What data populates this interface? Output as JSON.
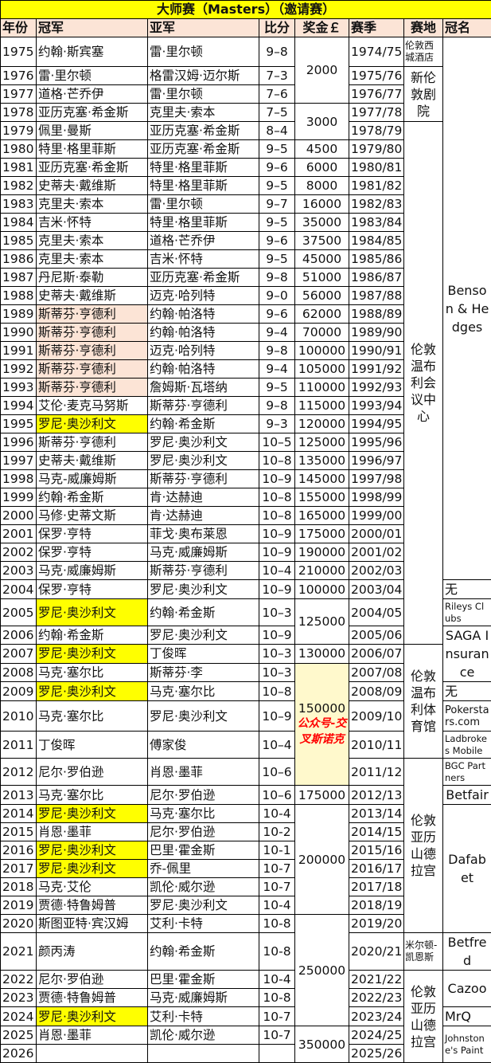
{
  "title": "大师赛（Masters）（邀请赛）",
  "headers": {
    "year": "年份",
    "winner": "冠军",
    "runner_up": "亚军",
    "score": "比分",
    "prize": "奖金￡",
    "season": "赛季",
    "venue": "赛地",
    "sponsor": "冠名"
  },
  "colors": {
    "title_bg": "#ffff00",
    "header_bg": "#fce4d6",
    "osullivan_highlight": "#ffff00",
    "hendry_highlight": "#fce4d6",
    "prize_highlight": "#fff9cc",
    "note_text": "#ff0000"
  },
  "rows": [
    {
      "year": "1975",
      "winner": "约翰·斯宾塞",
      "runner_up": "雷·里尔顿",
      "score": "9–8",
      "season": "1974/75",
      "hl": ""
    },
    {
      "year": "1976",
      "winner": "雷·里尔顿",
      "runner_up": "格雷汉姆·迈尔斯",
      "score": "7–3",
      "season": "1975/76",
      "hl": ""
    },
    {
      "year": "1977",
      "winner": "道格·芒乔伊",
      "runner_up": "雷·里尔顿",
      "score": "7–6",
      "season": "1976/77",
      "hl": ""
    },
    {
      "year": "1978",
      "winner": "亚历克塞·希金斯",
      "runner_up": "克里夫·索本",
      "score": "7–5",
      "season": "1977/78",
      "hl": ""
    },
    {
      "year": "1979",
      "winner": "佩里·曼斯",
      "runner_up": "亚历克塞·希金斯",
      "score": "8–4",
      "season": "1978/79",
      "hl": ""
    },
    {
      "year": "1980",
      "winner": "特里·格里菲斯",
      "runner_up": "亚历克塞·希金斯",
      "score": "9–5",
      "season": "1979/80",
      "hl": ""
    },
    {
      "year": "1981",
      "winner": "亚历克塞·希金斯",
      "runner_up": "特里·格里菲斯",
      "score": "9–6",
      "season": "1980/81",
      "hl": ""
    },
    {
      "year": "1982",
      "winner": "史蒂夫·戴维斯",
      "runner_up": "特里·格里菲斯",
      "score": "9–5",
      "season": "1981/82",
      "hl": ""
    },
    {
      "year": "1983",
      "winner": "克里夫·索本",
      "runner_up": "雷·里尔顿",
      "score": "9–7",
      "season": "1982/83",
      "hl": ""
    },
    {
      "year": "1984",
      "winner": "吉米·怀特",
      "runner_up": "特里·格里菲斯",
      "score": "9–5",
      "season": "1983/84",
      "hl": ""
    },
    {
      "year": "1985",
      "winner": "克里夫·索本",
      "runner_up": "道格·芒乔伊",
      "score": "9–6",
      "season": "1984/85",
      "hl": ""
    },
    {
      "year": "1986",
      "winner": "克里夫·索本",
      "runner_up": "吉米·怀特",
      "score": "9–5",
      "season": "1985/86",
      "hl": ""
    },
    {
      "year": "1987",
      "winner": "丹尼斯·泰勒",
      "runner_up": "亚历克塞·希金斯",
      "score": "9–8",
      "season": "1986/87",
      "hl": ""
    },
    {
      "year": "1988",
      "winner": "史蒂夫·戴维斯",
      "runner_up": "迈克·哈列特",
      "score": "9–0",
      "season": "1987/88",
      "hl": ""
    },
    {
      "year": "1989",
      "winner": "斯蒂芬·亨德利",
      "runner_up": "约翰·帕洛特",
      "score": "9–6",
      "season": "1988/89",
      "hl": "hendry"
    },
    {
      "year": "1990",
      "winner": "斯蒂芬·亨德利",
      "runner_up": "约翰·帕洛特",
      "score": "9–4",
      "season": "1989/90",
      "hl": "hendry"
    },
    {
      "year": "1991",
      "winner": "斯蒂芬·亨德利",
      "runner_up": "迈克·哈列特",
      "score": "9–8",
      "season": "1990/91",
      "hl": "hendry"
    },
    {
      "year": "1992",
      "winner": "斯蒂芬·亨德利",
      "runner_up": "约翰·帕洛特",
      "score": "9–4",
      "season": "1991/92",
      "hl": "hendry"
    },
    {
      "year": "1993",
      "winner": "斯蒂芬·亨德利",
      "runner_up": "詹姆斯·瓦塔纳",
      "score": "9–5",
      "season": "1992/93",
      "hl": "hendry"
    },
    {
      "year": "1994",
      "winner": "艾伦·麦克马努斯",
      "runner_up": "斯蒂芬·亨德利",
      "score": "9–8",
      "season": "1993/94",
      "hl": ""
    },
    {
      "year": "1995",
      "winner": "罗尼·奥沙利文",
      "runner_up": "约翰·希金斯",
      "score": "9–3",
      "season": "1994/95",
      "hl": "osullivan"
    },
    {
      "year": "1996",
      "winner": "斯蒂芬·亨德利",
      "runner_up": "罗尼·奥沙利文",
      "score": "10–5",
      "season": "1995/96",
      "hl": ""
    },
    {
      "year": "1997",
      "winner": "史蒂夫·戴维斯",
      "runner_up": "罗尼·奥沙利文",
      "score": "10–8",
      "season": "1996/97",
      "hl": ""
    },
    {
      "year": "1998",
      "winner": "马克-威廉姆斯",
      "runner_up": "斯蒂芬·亨德利",
      "score": "10–9",
      "season": "1997/98",
      "hl": ""
    },
    {
      "year": "1999",
      "winner": "约翰·希金斯",
      "runner_up": "肯·达赫迪",
      "score": "10–8",
      "season": "1998/99",
      "hl": ""
    },
    {
      "year": "2000",
      "winner": "马修·史蒂文斯",
      "runner_up": "肯·达赫迪",
      "score": "10–8",
      "season": "1999/00",
      "hl": ""
    },
    {
      "year": "2001",
      "winner": "保罗·亨特",
      "runner_up": "菲戈·奥布莱恩",
      "score": "10–9",
      "season": "2000/01",
      "hl": ""
    },
    {
      "year": "2002",
      "winner": "保罗·亨特",
      "runner_up": "马克·威廉姆斯",
      "score": "10–9",
      "season": "2001/02",
      "hl": ""
    },
    {
      "year": "2003",
      "winner": "马克·威廉姆斯",
      "runner_up": "斯蒂芬·亨德利",
      "score": "10–4",
      "season": "2002/03",
      "hl": ""
    },
    {
      "year": "2004",
      "winner": "保罗·亨特",
      "runner_up": "罗尼·奥沙利文",
      "score": "10–9",
      "season": "2003/04",
      "hl": ""
    },
    {
      "year": "2005",
      "winner": "罗尼·奥沙利文",
      "runner_up": "约翰·希金斯",
      "score": "10–3",
      "season": "2004/05",
      "hl": "osullivan"
    },
    {
      "year": "2006",
      "winner": "约翰·希金斯",
      "runner_up": "罗尼·奥沙利文",
      "score": "10–9",
      "season": "2005/06",
      "hl": ""
    },
    {
      "year": "2007",
      "winner": "罗尼·奥沙利文",
      "runner_up": "丁俊晖",
      "score": "10–3",
      "season": "2006/07",
      "hl": "osullivan"
    },
    {
      "year": "2008",
      "winner": "马克·塞尔比",
      "runner_up": "斯蒂芬·李",
      "score": "10–3",
      "season": "2007/08",
      "hl": ""
    },
    {
      "year": "2009",
      "winner": "罗尼·奥沙利文",
      "runner_up": "马克·塞尔比",
      "score": "10–8",
      "season": "2008/09",
      "hl": "osullivan"
    },
    {
      "year": "2010",
      "winner": "马克·塞尔比",
      "runner_up": "罗尼·奥沙利文",
      "score": "10–9",
      "season": "2009/10",
      "hl": ""
    },
    {
      "year": "2011",
      "winner": "丁俊晖",
      "runner_up": "傅家俊",
      "score": "10–4",
      "season": "2010/11",
      "hl": ""
    },
    {
      "year": "2012",
      "winner": "尼尔·罗伯逊",
      "runner_up": "肖恩·墨菲",
      "score": "10–6",
      "season": "2011/12",
      "hl": ""
    },
    {
      "year": "2013",
      "winner": "马克·塞尔比",
      "runner_up": "尼尔·罗伯逊",
      "score": "10–6",
      "season": "2012/13",
      "hl": ""
    },
    {
      "year": "2014",
      "winner": "罗尼·奥沙利文",
      "runner_up": "马克·塞尔比",
      "score": "10-4",
      "season": "2013/14",
      "hl": "osullivan"
    },
    {
      "year": "2015",
      "winner": "肖恩·墨菲",
      "runner_up": "尼尔·罗伯逊",
      "score": "10-2",
      "season": "2014/15",
      "hl": ""
    },
    {
      "year": "2016",
      "winner": "罗尼·奥沙利文",
      "runner_up": "巴里·霍金斯",
      "score": "10-1",
      "season": "2015/16",
      "hl": "osullivan"
    },
    {
      "year": "2017",
      "winner": "罗尼·奥沙利文",
      "runner_up": "乔-佩里",
      "score": "10-7",
      "season": "2016/17",
      "hl": "osullivan"
    },
    {
      "year": "2018",
      "winner": "马克·艾伦",
      "runner_up": "凯伦·威尔逊",
      "score": "10-7",
      "season": "2017/18",
      "hl": ""
    },
    {
      "year": "2019",
      "winner": "贾德·特鲁姆普",
      "runner_up": "罗尼·奥沙利文",
      "score": "10-4",
      "season": "2018/19",
      "hl": ""
    },
    {
      "year": "2020",
      "winner": "斯图亚特·宾汉姆",
      "runner_up": "艾利·卡特",
      "score": "10-8",
      "season": "2019/20",
      "hl": ""
    },
    {
      "year": "2021",
      "winner": "颜丙涛",
      "runner_up": "约翰·希金斯",
      "score": "10-8",
      "season": "2020/21",
      "hl": ""
    },
    {
      "year": "2022",
      "winner": "尼尔·罗伯逊",
      "runner_up": "巴里·霍金斯",
      "score": "10-4",
      "season": "2021/22",
      "hl": ""
    },
    {
      "year": "2023",
      "winner": "贾德·特鲁姆普",
      "runner_up": "马克·威廉姆斯",
      "score": "10-8",
      "season": "2022/23",
      "hl": ""
    },
    {
      "year": "2024",
      "winner": "罗尼·奥沙利文",
      "runner_up": "艾利·卡特",
      "score": "10-7",
      "season": "2023/24",
      "hl": "osullivan"
    },
    {
      "year": "2025",
      "winner": "肖恩·墨菲",
      "runner_up": "凯伦·威尔逊",
      "score": "10-7",
      "season": "2024/25",
      "hl": ""
    },
    {
      "year": "2026",
      "winner": "",
      "runner_up": "",
      "score": "",
      "season": "2025/26",
      "hl": ""
    }
  ],
  "prizes": [
    {
      "value": "2000",
      "from": "1975",
      "to": "1977"
    },
    {
      "value": "3000",
      "from": "1978",
      "to": "1979"
    },
    {
      "value": "4500",
      "from": "1980",
      "to": "1980"
    },
    {
      "value": "6000",
      "from": "1981",
      "to": "1981"
    },
    {
      "value": "8000",
      "from": "1982",
      "to": "1982"
    },
    {
      "value": "16000",
      "from": "1983",
      "to": "1983"
    },
    {
      "value": "35000",
      "from": "1984",
      "to": "1984"
    },
    {
      "value": "37500",
      "from": "1985",
      "to": "1985"
    },
    {
      "value": "45000",
      "from": "1986",
      "to": "1986"
    },
    {
      "value": "51000",
      "from": "1987",
      "to": "1987"
    },
    {
      "value": "56000",
      "from": "1988",
      "to": "1988"
    },
    {
      "value": "62000",
      "from": "1989",
      "to": "1989"
    },
    {
      "value": "70000",
      "from": "1990",
      "to": "1990"
    },
    {
      "value": "100000",
      "from": "1991",
      "to": "1991"
    },
    {
      "value": "105000",
      "from": "1992",
      "to": "1992"
    },
    {
      "value": "110000",
      "from": "1993",
      "to": "1993"
    },
    {
      "value": "115000",
      "from": "1994",
      "to": "1994"
    },
    {
      "value": "120000",
      "from": "1995",
      "to": "1995"
    },
    {
      "value": "125000",
      "from": "1996",
      "to": "1996"
    },
    {
      "value": "135000",
      "from": "1997",
      "to": "1997"
    },
    {
      "value": "145000",
      "from": "1998",
      "to": "1998"
    },
    {
      "value": "155000",
      "from": "1999",
      "to": "1999"
    },
    {
      "value": "165000",
      "from": "2000",
      "to": "2000"
    },
    {
      "value": "175000",
      "from": "2001",
      "to": "2001"
    },
    {
      "value": "190000",
      "from": "2002",
      "to": "2002"
    },
    {
      "value": "210000",
      "from": "2003",
      "to": "2003"
    },
    {
      "value": "100000",
      "from": "2004",
      "to": "2004"
    },
    {
      "value": "125000",
      "from": "2005",
      "to": "2006"
    },
    {
      "value": "130000",
      "from": "2007",
      "to": "2007"
    },
    {
      "value": "150000",
      "from": "2008",
      "to": "2012",
      "note": "公众号-交叉斯诺克",
      "highlight": true
    },
    {
      "value": "175000",
      "from": "2013",
      "to": "2013"
    },
    {
      "value": "200000",
      "from": "2014",
      "to": "2019"
    },
    {
      "value": "250000",
      "from": "2020",
      "to": "2024"
    },
    {
      "value": "350000",
      "from": "2025",
      "to": "2026"
    }
  ],
  "venues": [
    {
      "name": "伦敦西城酒店",
      "from": "1975",
      "to": "1975",
      "small": true
    },
    {
      "name": "新伦敦剧院",
      "from": "1976",
      "to": "1978"
    },
    {
      "name": "伦敦温布利会议中心",
      "from": "1979",
      "to": "2006"
    },
    {
      "name": "伦敦温布利体育馆",
      "from": "2007",
      "to": "2011"
    },
    {
      "name": "伦敦亚历山德拉宫",
      "from": "2012",
      "to": "2020"
    },
    {
      "name": "米尔顿-凯恩斯",
      "from": "2021",
      "to": "2021",
      "small": true
    },
    {
      "name": "伦敦亚历山德拉宫",
      "from": "2022",
      "to": "2026"
    }
  ],
  "sponsors": [
    {
      "name": "Benson & Hedges",
      "from": "1975",
      "to": "2003"
    },
    {
      "name": "无",
      "from": "2004",
      "to": "2004",
      "left": true
    },
    {
      "name": "Rileys Clubs",
      "from": "2005",
      "to": "2005",
      "small": true
    },
    {
      "name": "SAGA Insurance",
      "from": "2006",
      "to": "2008"
    },
    {
      "name": "无",
      "from": "2009",
      "to": "2009",
      "left": true
    },
    {
      "name": "Pokerstars.com",
      "from": "2010",
      "to": "2010",
      "small": true,
      "big_small": true
    },
    {
      "name": "Ladbrokes Mobile",
      "from": "2011",
      "to": "2011",
      "small": true
    },
    {
      "name": "BGC Partners",
      "from": "2012",
      "to": "2012",
      "small": true
    },
    {
      "name": "Betfair",
      "from": "2013",
      "to": "2013"
    },
    {
      "name": "Dafabet",
      "from": "2014",
      "to": "2020"
    },
    {
      "name": "Betfred",
      "from": "2021",
      "to": "2021"
    },
    {
      "name": "Cazoo",
      "from": "2022",
      "to": "2023"
    },
    {
      "name": "MrQ",
      "from": "2024",
      "to": "2024",
      "left": true
    },
    {
      "name": "Johnstone's Paint",
      "from": "2025",
      "to": "2026",
      "small": true
    }
  ]
}
